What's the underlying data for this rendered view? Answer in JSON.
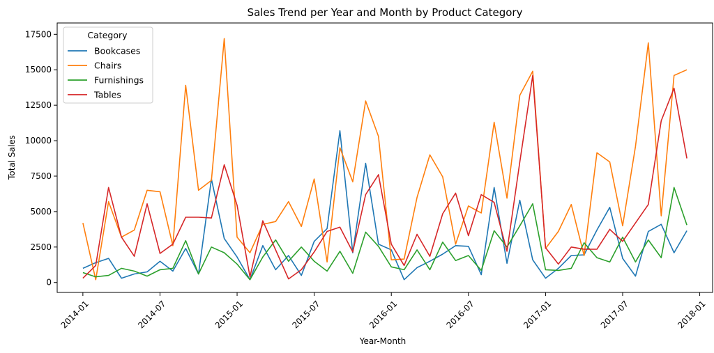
{
  "chart_data": {
    "type": "line",
    "title": "Sales Trend per Year and Month by Product Category",
    "xlabel": "Year-Month",
    "ylabel": "Total Sales",
    "x_start": "2014-01",
    "x_ticks": [
      "2014-01",
      "2014-07",
      "2015-01",
      "2015-07",
      "2016-01",
      "2016-07",
      "2017-01",
      "2017-07",
      "2018-01"
    ],
    "x_range": [
      "2013-11",
      "2018-02"
    ],
    "y_ticks": [
      0,
      2500,
      5000,
      7500,
      10000,
      12500,
      15000,
      17500
    ],
    "y_tick_labels": [
      "0",
      "2500",
      "5000",
      "7500",
      "10000",
      "12500",
      "15000",
      "17500"
    ],
    "ylim": [
      -700,
      18300
    ],
    "grid": false,
    "legend": {
      "title": "Category",
      "placement": "top-left"
    },
    "series": [
      {
        "name": "Bookcases",
        "color": "#1f77b4",
        "values": [
          1000,
          1400,
          1700,
          300,
          600,
          750,
          1500,
          800,
          2400,
          600,
          7300,
          3100,
          1800,
          200,
          2600,
          900,
          1900,
          500,
          2900,
          3800,
          10700,
          2100,
          8400,
          2700,
          2300,
          200,
          1050,
          1500,
          2000,
          2600,
          2550,
          550,
          6700,
          1350,
          5800,
          1600,
          300,
          1000,
          1900,
          1950,
          3700,
          5300,
          1700,
          450,
          3600,
          4100,
          2100,
          3650
        ]
      },
      {
        "name": "Chairs",
        "color": "#ff7f0e",
        "values": [
          4200,
          200,
          5700,
          3200,
          3700,
          6500,
          6400,
          2600,
          13900,
          6500,
          7200,
          17200,
          3200,
          2100,
          4100,
          4300,
          5700,
          3950,
          7300,
          1450,
          9500,
          7100,
          12800,
          10300,
          1600,
          1650,
          6000,
          9000,
          7450,
          2700,
          5400,
          4900,
          11300,
          5950,
          13200,
          14900,
          2400,
          3600,
          5500,
          1900,
          9150,
          8500,
          4000,
          9600,
          16900,
          4700,
          14600,
          15000
        ]
      },
      {
        "name": "Furnishings",
        "color": "#2ca02c",
        "values": [
          700,
          400,
          500,
          1000,
          800,
          450,
          900,
          1000,
          2950,
          600,
          2500,
          2100,
          1300,
          200,
          1800,
          3000,
          1500,
          2500,
          1500,
          800,
          2200,
          650,
          3550,
          2550,
          1100,
          900,
          2300,
          900,
          2850,
          1550,
          1900,
          850,
          3650,
          2500,
          4000,
          5550,
          900,
          850,
          1000,
          2800,
          1750,
          1450,
          3200,
          1450,
          3000,
          1750,
          6700,
          4050
        ]
      },
      {
        "name": "Tables",
        "color": "#d62728",
        "values": [
          300,
          1200,
          6700,
          3200,
          1850,
          5550,
          2050,
          2700,
          4600,
          4600,
          4550,
          8300,
          5450,
          400,
          4350,
          2300,
          250,
          900,
          2150,
          3600,
          3900,
          2150,
          6200,
          7600,
          2700,
          1200,
          3400,
          1850,
          4850,
          6300,
          3300,
          6200,
          5650,
          2200,
          8500,
          14600,
          2450,
          1300,
          2500,
          2350,
          2350,
          3750,
          2900,
          4200,
          5500,
          11400,
          13700,
          8750
        ]
      }
    ]
  }
}
